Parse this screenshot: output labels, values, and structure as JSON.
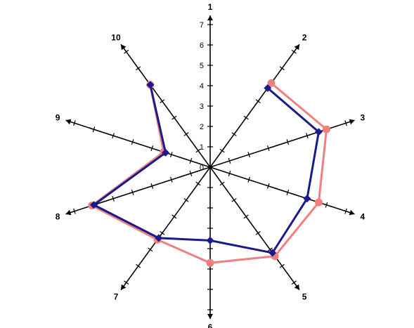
{
  "chart_data": {
    "type": "radar",
    "categories": [
      "1",
      "2",
      "3",
      "4",
      "5",
      "6",
      "7",
      "8",
      "9",
      "10"
    ],
    "scale_ticks": [
      "0",
      "1",
      "2",
      "3",
      "4",
      "5",
      "6",
      "7"
    ],
    "rmax": 7,
    "grid": false,
    "legend": "none",
    "series": [
      {
        "color": "#f08080",
        "values": [
          null,
          5.1,
          6.0,
          5.6,
          5.4,
          4.7,
          4.4,
          6.1,
          2.4,
          5.0
        ]
      },
      {
        "color": "#1a1a8c",
        "values": [
          null,
          4.8,
          5.6,
          5.0,
          5.2,
          3.6,
          4.3,
          6.0,
          2.3,
          5.0
        ]
      }
    ]
  }
}
